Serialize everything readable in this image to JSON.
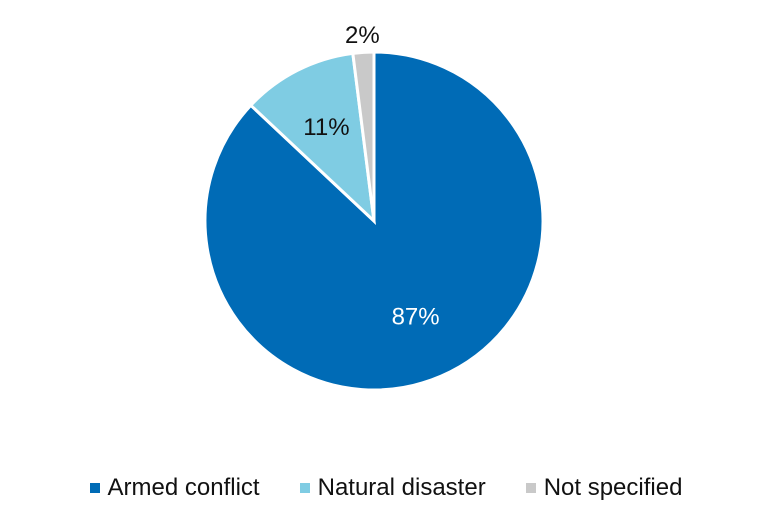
{
  "chart_data": {
    "type": "pie",
    "title": "",
    "categories": [
      "Armed conflict",
      "Natural disaster",
      "Not specified"
    ],
    "values": [
      87,
      11,
      2
    ],
    "labels": [
      "87%",
      "11%",
      "2%"
    ],
    "colors": [
      "#006bb6",
      "#7fcce3",
      "#c9c9c9"
    ],
    "label_colors": [
      "#ffffff",
      "#111111",
      "#111111"
    ],
    "legend_position": "bottom",
    "start_angle_deg": 0,
    "direction": "clockwise"
  }
}
